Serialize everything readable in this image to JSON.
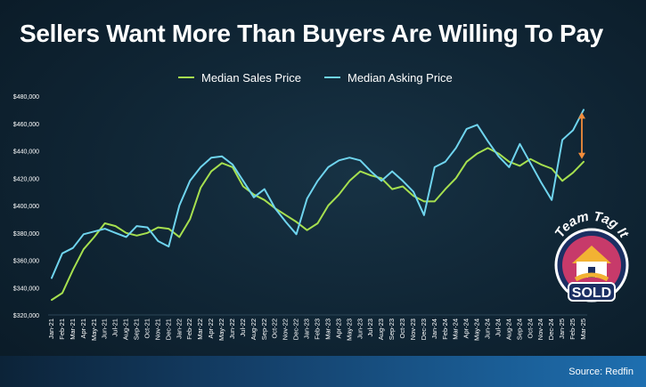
{
  "title": "Sellers Want More Than Buyers Are Willing To Pay",
  "source": "Source: Redfin",
  "logo": {
    "top_text": "Team Tag It",
    "bottom_text": "SOLD"
  },
  "colors": {
    "sales": "#a6e04f",
    "asking": "#6fd4ee",
    "gap_arrow": "#f28c3b",
    "axis_text": "#ffffff",
    "grid": "#2b4556"
  },
  "chart_data": {
    "type": "line",
    "title": "Sellers Want More Than Buyers Are Willing To Pay",
    "xlabel": "",
    "ylabel": "",
    "ylim": [
      320000,
      480000
    ],
    "yticks": [
      320000,
      340000,
      360000,
      380000,
      400000,
      420000,
      440000,
      460000,
      480000
    ],
    "ytick_labels": [
      "$320,000",
      "$340,000",
      "$360,000",
      "$380,000",
      "$400,000",
      "$420,000",
      "$440,000",
      "$460,000",
      "$480,000"
    ],
    "legend_position": "top-center",
    "grid": false,
    "categories": [
      "Jan-21",
      "Feb-21",
      "Mar-21",
      "Apr-21",
      "May-21",
      "Jun-21",
      "Jul-21",
      "Aug-21",
      "Sep-21",
      "Oct-21",
      "Nov-21",
      "Dec-21",
      "Jan-22",
      "Feb-22",
      "Mar-22",
      "Apr-22",
      "May-22",
      "Jun-22",
      "Jul-22",
      "Aug-22",
      "Sep-22",
      "Oct-22",
      "Nov-22",
      "Dec-22",
      "Jan-23",
      "Feb-23",
      "Mar-23",
      "Apr-23",
      "May-23",
      "Jun-23",
      "Jul-23",
      "Aug-23",
      "Sep-23",
      "Oct-23",
      "Nov-23",
      "Dec-23",
      "Jan-24",
      "Feb-24",
      "Mar-24",
      "Apr-24",
      "May-24",
      "Jun-24",
      "Jul-24",
      "Aug-24",
      "Sep-24",
      "Oct-24",
      "Nov-24",
      "Dec-24",
      "Jan-25",
      "Feb-25",
      "Mar-25"
    ],
    "series": [
      {
        "name": "Median Sales Price",
        "values": [
          331000,
          336000,
          353000,
          368000,
          377000,
          387000,
          385000,
          380000,
          378000,
          380000,
          384000,
          383000,
          377000,
          390000,
          413000,
          425000,
          431000,
          428000,
          414000,
          408000,
          404000,
          398000,
          393000,
          388000,
          382000,
          387000,
          400000,
          408000,
          418000,
          425000,
          422000,
          420000,
          412000,
          414000,
          407000,
          403000,
          403000,
          412000,
          420000,
          432000,
          438000,
          442000,
          438000,
          432000,
          429000,
          434000,
          430000,
          427000,
          418000,
          424000,
          432000
        ]
      },
      {
        "name": "Median Asking Price",
        "values": [
          347000,
          365000,
          369000,
          379000,
          381000,
          383000,
          380000,
          377000,
          385000,
          384000,
          374000,
          370000,
          400000,
          418000,
          428000,
          435000,
          436000,
          430000,
          418000,
          406000,
          412000,
          398000,
          388000,
          379000,
          405000,
          418000,
          428000,
          433000,
          435000,
          433000,
          425000,
          418000,
          425000,
          418000,
          410000,
          393000,
          428000,
          432000,
          442000,
          456000,
          459000,
          447000,
          436000,
          428000,
          445000,
          431000,
          417000,
          404000,
          448000,
          455000,
          470000
        ]
      }
    ]
  }
}
